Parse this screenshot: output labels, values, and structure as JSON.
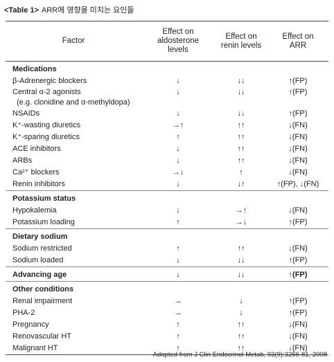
{
  "title": {
    "label": "<Table 1>",
    "text": "ARR에 영향을 미치는 요인들"
  },
  "table": {
    "header": [
      "Factor",
      "Effect on aldosterone levels",
      "Effect on renin levels",
      "Effect on ARR"
    ],
    "sections": [
      {
        "name": "Medications",
        "rows": [
          {
            "factor": "β-Adrenergic blockers",
            "cells": [
              "↓",
              "↓↓",
              "↑(FP)"
            ]
          },
          {
            "factor": "Central α-2 agonists",
            "note": "(e.g. clonidine and α-methyldopa)",
            "cells": [
              "↓",
              "↓↓",
              "↑(FP)"
            ]
          },
          {
            "factor": "NSAIDs",
            "cells": [
              "↓",
              "↓↓",
              "↑(FP)"
            ]
          },
          {
            "factor": "K⁺-wasting diuretics",
            "cells": [
              "→↑",
              "↑↑",
              "↓(FN)"
            ]
          },
          {
            "factor": "K⁺-sparing diuretics",
            "cells": [
              "↑",
              "↑↑",
              "↓(FN)"
            ]
          },
          {
            "factor": "ACE inhibitors",
            "cells": [
              "↓",
              "↑↑",
              "↓(FN)"
            ]
          },
          {
            "factor": "ARBs",
            "cells": [
              "↓",
              "↑↑",
              "↓(FN)"
            ]
          },
          {
            "factor": "Ca²⁺ blockers",
            "cells": [
              "→↓",
              "↑",
              "↓(FN)"
            ]
          },
          {
            "factor": "Renin inhibitors",
            "cells": [
              "↓",
              "↓↑",
              "↑(FP), ↓(FN)"
            ]
          }
        ]
      },
      {
        "name": "Potassium status",
        "rows": [
          {
            "factor": "Hypokalemia",
            "cells": [
              "↓",
              "→↑",
              "↓(FN)"
            ]
          },
          {
            "factor": "Potassium loading",
            "cells": [
              "↑",
              "→↓",
              "↑(FP)"
            ]
          }
        ]
      },
      {
        "name": "Dietary sodium",
        "rows": [
          {
            "factor": "Sodium restricted",
            "cells": [
              "↑",
              "↑↑",
              "↓(FN)"
            ]
          },
          {
            "factor": "Sodium loaded",
            "cells": [
              "↓",
              "↓↓",
              "↑(FP)"
            ]
          }
        ]
      },
      {
        "name": "Advancing age",
        "cells": [
          "↓",
          "↓↓",
          "↑(FP)"
        ]
      },
      {
        "name": "Other conditions",
        "rows": [
          {
            "factor": "Renal impairment",
            "cells": [
              "→",
              "↓",
              "↑(FP)"
            ]
          },
          {
            "factor": "PHA-2",
            "cells": [
              "→",
              "↓",
              "↑(FP)"
            ]
          },
          {
            "factor": "Pregnancy",
            "cells": [
              "↑",
              "↑↑",
              "↓(FN)"
            ]
          },
          {
            "factor": "Renovascular HT",
            "cells": [
              "↑",
              "↑↑",
              "↓(FN)"
            ]
          },
          {
            "factor": "Malignant HT",
            "cells": [
              "↑",
              "↑↑",
              "↓(FN)"
            ]
          }
        ]
      }
    ]
  },
  "footer": "Adopted from J Clin Endocrinol Metab, 93(9):3266-81, 2008"
}
